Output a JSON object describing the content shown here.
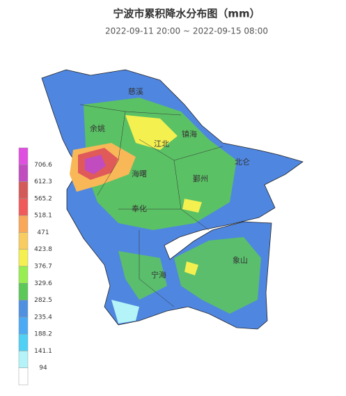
{
  "header": {
    "title": "宁波市累积降水分布图（mm）",
    "subtitle": "2022-09-11 20:00 ~ 2022-09-15 08:00"
  },
  "legend": {
    "labels": [
      706.6,
      612.3,
      565.2,
      518.1,
      471,
      423.8,
      376.7,
      329.6,
      282.5,
      235.4,
      188.2,
      141.1,
      94
    ],
    "colors": [
      "#e050e0",
      "#c04cc0",
      "#d45a5a",
      "#f05a5a",
      "#f8a858",
      "#f8cc60",
      "#f4f050",
      "#98ee50",
      "#5cc858",
      "#5090e0",
      "#4caaf4",
      "#50d0f4",
      "#b4f4f8",
      "#ffffff"
    ]
  },
  "districts": [
    "慈溪",
    "余姚",
    "江北",
    "镇海",
    "海曙",
    "鄞州",
    "北仑",
    "奉化",
    "象山",
    "宁海"
  ]
}
